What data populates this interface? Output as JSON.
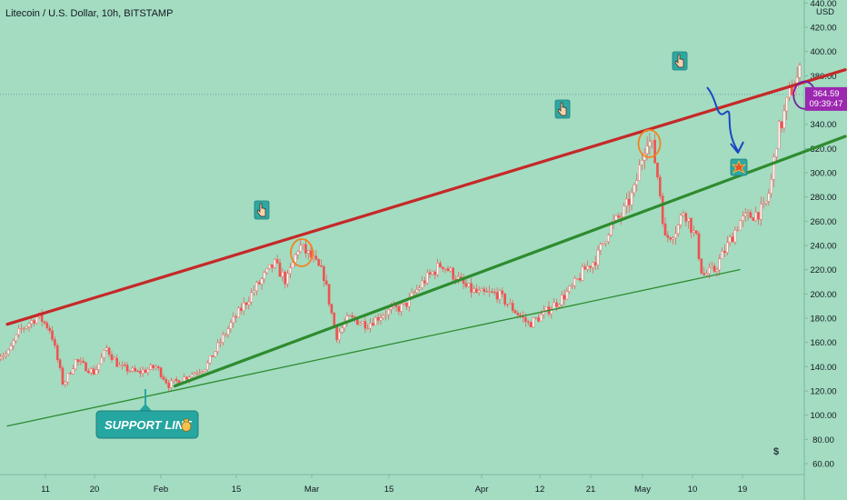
{
  "header": {
    "title": "Litecoin / U.S. Dollar, 10h, BITSTAMP"
  },
  "price_axis": {
    "unit": "USD",
    "current_price": "364.59",
    "countdown": "09:39:47"
  },
  "annotations": {
    "support_callout": "SUPPORT LINE",
    "money_bag_icon": "money-bag-icon",
    "pointer_icon": "hand-pointer-icon",
    "explosion_icon": "explosion-icon",
    "dollar_glyph": "$"
  },
  "colors": {
    "background": "#a3dcc1",
    "up_candle": "#ffffff",
    "down_candle": "#ef5350",
    "resistance_line": "#c62828",
    "support_line": "#2e8b2e",
    "price_tag": "#9c27b0",
    "callout": "#26a6a0",
    "arrow": "#1a47c2",
    "circle_orange": "#f5821f",
    "circle_purple": "#7b1fa2"
  },
  "chart_data": {
    "type": "candlestick",
    "title": "Litecoin / U.S. Dollar, 10h, BITSTAMP",
    "ylabel": "USD",
    "ylim": [
      50,
      440
    ],
    "y_ticks": [
      60,
      80,
      100,
      120,
      140,
      160,
      180,
      200,
      220,
      240,
      260,
      280,
      300,
      320,
      340,
      360,
      380,
      400,
      420,
      440
    ],
    "y_tick_labels": [
      "60.00",
      "80.00",
      "100.00",
      "120.00",
      "140.00",
      "160.00",
      "180.00",
      "200.00",
      "220.00",
      "240.00",
      "260.00",
      "280.00",
      "300.00",
      "320.00",
      "340.00",
      "360.00",
      "380.00",
      "400.00",
      "420.00",
      "440.00"
    ],
    "x_ticks": [
      "11",
      "20",
      "Feb",
      "15",
      "Mar",
      "15",
      "Apr",
      "12",
      "21",
      "May",
      "10",
      "19"
    ],
    "current_price": 364.59,
    "price_path": [
      {
        "t": "Jan 2",
        "p": 150
      },
      {
        "t": "Jan 4",
        "p": 170
      },
      {
        "t": "Jan 7",
        "p": 182
      },
      {
        "t": "Jan 9",
        "p": 170
      },
      {
        "t": "Jan 11",
        "p": 125
      },
      {
        "t": "Jan 13",
        "p": 145
      },
      {
        "t": "Jan 16",
        "p": 135
      },
      {
        "t": "Jan 18",
        "p": 155
      },
      {
        "t": "Jan 20",
        "p": 140
      },
      {
        "t": "Jan 23",
        "p": 135
      },
      {
        "t": "Jan 26",
        "p": 140
      },
      {
        "t": "Jan 28",
        "p": 125
      },
      {
        "t": "Jan 31",
        "p": 132
      },
      {
        "t": "Feb 3",
        "p": 140
      },
      {
        "t": "Feb 7",
        "p": 175
      },
      {
        "t": "Feb 11",
        "p": 205
      },
      {
        "t": "Feb 14",
        "p": 225
      },
      {
        "t": "Feb 16",
        "p": 210
      },
      {
        "t": "Feb 18",
        "p": 240
      },
      {
        "t": "Feb 20",
        "p": 230
      },
      {
        "t": "Feb 22",
        "p": 215
      },
      {
        "t": "Feb 24",
        "p": 165
      },
      {
        "t": "Feb 26",
        "p": 180
      },
      {
        "t": "Mar 1",
        "p": 175
      },
      {
        "t": "Mar 4",
        "p": 185
      },
      {
        "t": "Mar 7",
        "p": 190
      },
      {
        "t": "Mar 10",
        "p": 210
      },
      {
        "t": "Mar 13",
        "p": 225
      },
      {
        "t": "Mar 15",
        "p": 215
      },
      {
        "t": "Mar 17",
        "p": 205
      },
      {
        "t": "Mar 19",
        "p": 200
      },
      {
        "t": "Mar 22",
        "p": 200
      },
      {
        "t": "Mar 25",
        "p": 185
      },
      {
        "t": "Mar 27",
        "p": 175
      },
      {
        "t": "Mar 29",
        "p": 182
      },
      {
        "t": "Apr 1",
        "p": 195
      },
      {
        "t": "Apr 3",
        "p": 205
      },
      {
        "t": "Apr 5",
        "p": 220
      },
      {
        "t": "Apr 7",
        "p": 230
      },
      {
        "t": "Apr 9",
        "p": 255
      },
      {
        "t": "Apr 11",
        "p": 265
      },
      {
        "t": "Apr 13",
        "p": 285
      },
      {
        "t": "Apr 15",
        "p": 330
      },
      {
        "t": "Apr 16",
        "p": 320
      },
      {
        "t": "Apr 17",
        "p": 290
      },
      {
        "t": "Apr 18",
        "p": 245
      },
      {
        "t": "Apr 20",
        "p": 255
      },
      {
        "t": "Apr 21",
        "p": 270
      },
      {
        "t": "Apr 23",
        "p": 245
      },
      {
        "t": "Apr 24",
        "p": 215
      },
      {
        "t": "Apr 26",
        "p": 220
      },
      {
        "t": "Apr 28",
        "p": 240
      },
      {
        "t": "Apr 30",
        "p": 260
      },
      {
        "t": "May 2",
        "p": 265
      },
      {
        "t": "May 4",
        "p": 270
      },
      {
        "t": "May 5",
        "p": 290
      },
      {
        "t": "May 6",
        "p": 330
      },
      {
        "t": "May 7",
        "p": 345
      },
      {
        "t": "May 8",
        "p": 365
      },
      {
        "t": "May 9",
        "p": 375
      },
      {
        "t": "May 10",
        "p": 385
      },
      {
        "t": "May 11",
        "p": 364.59
      }
    ],
    "trendlines": [
      {
        "role": "resistance",
        "from": {
          "t": "Jan 2",
          "p": 175
        },
        "to": {
          "t": "May 17",
          "p": 385
        }
      },
      {
        "role": "rising-support",
        "from": {
          "t": "Jan 29",
          "p": 124
        },
        "to": {
          "t": "May 17",
          "p": 330
        }
      },
      {
        "role": "long-term-support",
        "from": {
          "t": "Jan 2",
          "p": 91
        },
        "to": {
          "t": "Apr 30",
          "p": 220
        }
      }
    ]
  }
}
